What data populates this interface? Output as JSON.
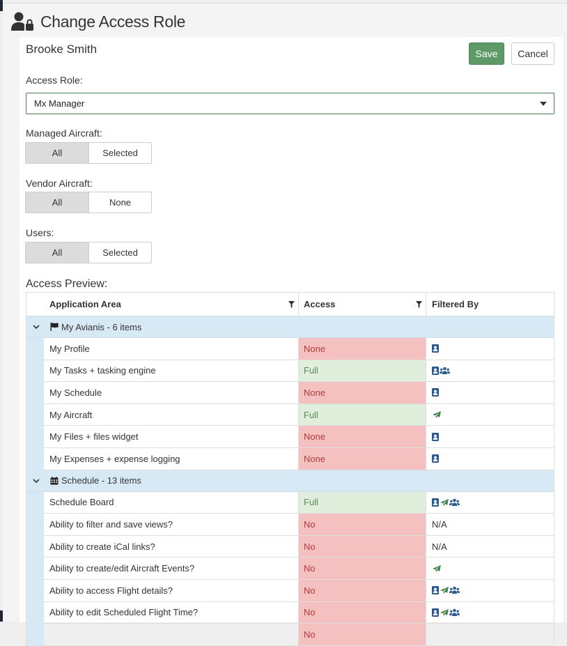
{
  "header": {
    "title": "Change Access Role",
    "icon": "user-lock-icon"
  },
  "user": {
    "name": "Brooke Smith"
  },
  "toolbar": {
    "save_label": "Save",
    "cancel_label": "Cancel"
  },
  "colors": {
    "accent": "#5e9a66",
    "none_bg": "#f5c0c0",
    "full_bg": "#e0eedc",
    "group_bg": "#d8e9f6"
  },
  "form": {
    "access_role": {
      "label": "Access Role:",
      "value": "Mx Manager"
    },
    "managed_aircraft": {
      "label": "Managed Aircraft:",
      "options": [
        "All",
        "Selected"
      ],
      "selected": "All"
    },
    "vendor_aircraft": {
      "label": "Vendor Aircraft:",
      "options": [
        "All",
        "None"
      ],
      "selected": "All"
    },
    "users": {
      "label": "Users:",
      "options": [
        "All",
        "Selected"
      ],
      "selected": "All"
    }
  },
  "preview": {
    "label": "Access Preview:",
    "columns": {
      "area": "Application Area",
      "access": "Access",
      "filtered_by": "Filtered By"
    },
    "groups": [
      {
        "title": "My Avianis - 6 items",
        "icon": "flag-icon",
        "rows": [
          {
            "area": "My Profile",
            "access": "None",
            "filter": [
              "user"
            ]
          },
          {
            "area": "My Tasks + tasking engine",
            "access": "Full",
            "filter": [
              "user",
              "users"
            ]
          },
          {
            "area": "My Schedule",
            "access": "None",
            "filter": [
              "user"
            ]
          },
          {
            "area": "My Aircraft",
            "access": "Full",
            "filter": [
              "plane"
            ]
          },
          {
            "area": "My Files + files widget",
            "access": "None",
            "filter": [
              "user"
            ]
          },
          {
            "area": "My Expenses + expense logging",
            "access": "None",
            "filter": [
              "user"
            ]
          }
        ]
      },
      {
        "title": "Schedule - 13 items",
        "icon": "calendar-icon",
        "rows": [
          {
            "area": "Schedule Board",
            "access": "Full",
            "filter": [
              "user",
              "plane",
              "users"
            ]
          },
          {
            "area": "Ability to filter and save views?",
            "access": "No",
            "filter_text": "N/A"
          },
          {
            "area": "Ability to create iCal links?",
            "access": "No",
            "filter_text": "N/A"
          },
          {
            "area": "Ability to create/edit Aircraft Events?",
            "access": "No",
            "filter": [
              "plane"
            ]
          },
          {
            "area": "Ability to access Flight details?",
            "access": "No",
            "filter": [
              "user",
              "plane",
              "users"
            ]
          },
          {
            "area": "Ability to edit Scheduled Flight Time?",
            "access": "No",
            "filter": [
              "user",
              "plane",
              "users"
            ]
          },
          {
            "area": "",
            "access": "No",
            "filter": []
          }
        ]
      }
    ]
  }
}
